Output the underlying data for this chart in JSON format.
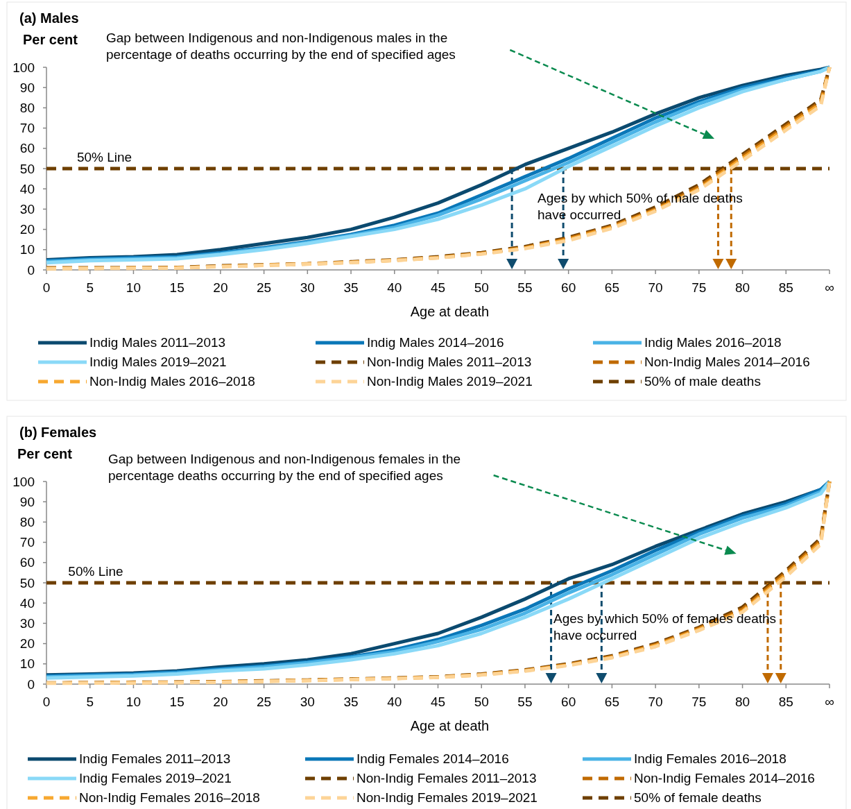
{
  "chart_data": [
    {
      "type": "line",
      "title": "(a) Males",
      "ylabel": "Per cent",
      "xlabel": "Age at death",
      "x": [
        0,
        5,
        10,
        15,
        20,
        25,
        30,
        35,
        40,
        45,
        50,
        55,
        60,
        65,
        70,
        75,
        80,
        85,
        89,
        90
      ],
      "xlim": [
        0,
        90
      ],
      "xticks": [
        0,
        5,
        10,
        15,
        20,
        25,
        30,
        35,
        40,
        45,
        50,
        55,
        60,
        65,
        70,
        75,
        80,
        85,
        {
          "value": 90,
          "label": "∞"
        }
      ],
      "ylim": [
        0,
        100
      ],
      "yticks": [
        0,
        10,
        20,
        30,
        40,
        50,
        60,
        70,
        80,
        90,
        100
      ],
      "legend": "bottom",
      "series": [
        {
          "name": "Indig Males 2011–2013",
          "color": "#0b4a6f",
          "line_style": "solid",
          "values": [
            5,
            6,
            6.5,
            7.5,
            10,
            13,
            16,
            20,
            26,
            33,
            42,
            52,
            60,
            68,
            77,
            85,
            91,
            96,
            99,
            100
          ]
        },
        {
          "name": "Indig Males 2014–2016",
          "color": "#0a77b8",
          "line_style": "solid",
          "values": [
            4.5,
            5.5,
            6,
            6.5,
            8.5,
            11,
            14,
            17.5,
            22,
            28,
            37,
            46,
            55,
            65,
            75,
            83,
            90,
            95,
            98.5,
            100
          ]
        },
        {
          "name": "Indig Males 2016–2018",
          "color": "#4ab3e6",
          "line_style": "solid",
          "values": [
            4,
            5,
            5.5,
            6,
            8,
            10.5,
            13.5,
            17,
            21,
            27,
            35,
            44,
            53,
            63,
            73,
            82,
            89,
            94,
            98,
            100
          ]
        },
        {
          "name": "Indig Males 2019–2021",
          "color": "#8ad9f7",
          "line_style": "solid",
          "values": [
            3.5,
            4.5,
            5,
            5.5,
            7.5,
            10,
            13,
            16.5,
            20,
            25,
            32,
            40,
            51,
            61,
            71,
            80,
            88,
            94,
            98,
            100
          ]
        },
        {
          "name": "Non-Indig Males 2011–2013",
          "color": "#6e3f00",
          "line_style": "dashed",
          "values": [
            1,
            1,
            1,
            1.2,
            2,
            2.5,
            3,
            4,
            5,
            6.5,
            8.5,
            11.5,
            16,
            22,
            31,
            42,
            57,
            72,
            84,
            100
          ]
        },
        {
          "name": "Non-Indig Males 2014–2016",
          "color": "#c06a00",
          "line_style": "dashed",
          "values": [
            0.8,
            0.9,
            1,
            1.1,
            1.8,
            2.4,
            3,
            3.8,
            4.8,
            6.2,
            8.2,
            11,
            15.5,
            21.5,
            30,
            41,
            56,
            71,
            83,
            100
          ]
        },
        {
          "name": "Non-Indig Males 2016–2018",
          "color": "#f7a830",
          "line_style": "dashed",
          "values": [
            0.7,
            0.8,
            0.9,
            1,
            1.7,
            2.3,
            2.9,
            3.7,
            4.7,
            6,
            8,
            10.8,
            15,
            21,
            29.5,
            40,
            55,
            70,
            82,
            100
          ]
        },
        {
          "name": "Non-Indig Males 2019–2021",
          "color": "#fdd497",
          "line_style": "dashed",
          "values": [
            0.6,
            0.7,
            0.8,
            0.9,
            1.6,
            2.2,
            2.8,
            3.6,
            4.6,
            5.9,
            7.8,
            10.5,
            14.5,
            20.5,
            29,
            39.5,
            54,
            69,
            81,
            100
          ]
        }
      ],
      "ref_lines": [
        {
          "axis": "y",
          "value": 50,
          "label": "50% of male deaths",
          "color": "#6e3f00",
          "line_style": "dashed"
        },
        {
          "axis": "x",
          "value": 53.5,
          "color": "#0f4c6e",
          "line_style": "dashed"
        },
        {
          "axis": "x",
          "value": 59.4,
          "color": "#0f4c6e",
          "line_style": "dashed"
        },
        {
          "axis": "x",
          "value": 77.2,
          "color": "#c06a00",
          "line_style": "dashed"
        },
        {
          "axis": "x",
          "value": 78.7,
          "color": "#c06a00",
          "line_style": "dashed"
        }
      ],
      "annotations": [
        "Gap between Indigenous and non-Indigenous males in the\npercentage of deaths occurring by the end of specified ages",
        {
          "text": "50% Line",
          "x": 3.5,
          "y": 50
        },
        "Ages by which 50% of male deaths\nhave occurred"
      ]
    },
    {
      "type": "line",
      "title": "(b) Females",
      "ylabel": "Per cent",
      "xlabel": "Age at death",
      "x": [
        0,
        5,
        10,
        15,
        20,
        25,
        30,
        35,
        40,
        45,
        50,
        55,
        60,
        65,
        70,
        75,
        80,
        85,
        89,
        90
      ],
      "xlim": [
        0,
        90
      ],
      "xticks": [
        0,
        5,
        10,
        15,
        20,
        25,
        30,
        35,
        40,
        45,
        50,
        55,
        60,
        65,
        70,
        75,
        80,
        85,
        {
          "value": 90,
          "label": "∞"
        }
      ],
      "ylim": [
        0,
        100
      ],
      "yticks": [
        0,
        10,
        20,
        30,
        40,
        50,
        60,
        70,
        80,
        90,
        100
      ],
      "legend": "bottom",
      "series": [
        {
          "name": "Indig Females 2011–2013",
          "color": "#0b4a6f",
          "line_style": "solid",
          "values": [
            4.5,
            5,
            5.5,
            6.5,
            8.5,
            10,
            12,
            15,
            20,
            25,
            33,
            42,
            52,
            59,
            68,
            76,
            84,
            90,
            96,
            100
          ]
        },
        {
          "name": "Indig Females 2014–2016",
          "color": "#0a77b8",
          "line_style": "solid",
          "values": [
            4,
            4.5,
            5,
            6,
            7.5,
            9,
            11,
            13.5,
            17,
            22,
            29,
            37,
            47,
            56,
            66,
            75,
            83,
            89,
            96,
            100
          ]
        },
        {
          "name": "Indig Females 2016–2018",
          "color": "#4ab3e6",
          "line_style": "solid",
          "values": [
            3.5,
            4,
            4.5,
            5.5,
            7,
            8.5,
            10.5,
            13,
            16,
            21,
            27,
            35,
            45,
            54,
            64,
            74,
            82,
            88,
            95,
            100
          ]
        },
        {
          "name": "Indig Females 2019–2021",
          "color": "#8ad9f7",
          "line_style": "solid",
          "values": [
            3,
            3.5,
            4,
            5,
            6.5,
            7.5,
            9.5,
            12,
            15,
            19,
            25,
            33,
            42,
            52,
            62,
            72,
            80,
            87,
            94,
            100
          ]
        },
        {
          "name": "Non-Indig Females 2011–2013",
          "color": "#6e3f00",
          "line_style": "dashed",
          "values": [
            0.6,
            0.7,
            0.9,
            1,
            1.2,
            1.6,
            2,
            2.5,
            3,
            3.6,
            5,
            7,
            10,
            14,
            20,
            28,
            38,
            56,
            72,
            100
          ]
        },
        {
          "name": "Non-Indig Females 2014–2016",
          "color": "#c06a00",
          "line_style": "dashed",
          "values": [
            0.5,
            0.6,
            0.8,
            0.9,
            1.1,
            1.5,
            1.9,
            2.4,
            2.9,
            3.5,
            4.8,
            6.8,
            9.7,
            13.6,
            19.5,
            27.5,
            37,
            55,
            71,
            100
          ]
        },
        {
          "name": "Non-Indig Females 2016–2018",
          "color": "#f7a830",
          "line_style": "dashed",
          "values": [
            0.5,
            0.6,
            0.7,
            0.8,
            1,
            1.4,
            1.8,
            2.3,
            2.8,
            3.4,
            4.6,
            6.6,
            9.4,
            13.2,
            19,
            27,
            36,
            54,
            70,
            100
          ]
        },
        {
          "name": "Non-Indig Females 2019–2021",
          "color": "#fdd497",
          "line_style": "dashed",
          "values": [
            0.4,
            0.5,
            0.6,
            0.7,
            0.9,
            1.3,
            1.7,
            2.2,
            2.7,
            3.3,
            4.5,
            6.4,
            9.2,
            13,
            18.5,
            26.5,
            35.5,
            53,
            69,
            100
          ]
        }
      ],
      "ref_lines": [
        {
          "axis": "y",
          "value": 50,
          "label": "50% of female deaths",
          "color": "#6e3f00",
          "line_style": "dashed"
        },
        {
          "axis": "x",
          "value": 58,
          "color": "#0f4c6e",
          "line_style": "dashed"
        },
        {
          "axis": "x",
          "value": 63.8,
          "color": "#0f4c6e",
          "line_style": "dashed"
        },
        {
          "axis": "x",
          "value": 82.9,
          "color": "#c06a00",
          "line_style": "dashed"
        },
        {
          "axis": "x",
          "value": 84.4,
          "color": "#c06a00",
          "line_style": "dashed"
        }
      ],
      "annotations": [
        "Gap between Indigenous and non-Indigenous females in the\npercentage deaths occurring by the end of specified ages",
        {
          "text": "50% Line",
          "x": 2.5,
          "y": 50
        },
        "Ages by which 50% of females deaths\nhave occurred"
      ]
    }
  ]
}
